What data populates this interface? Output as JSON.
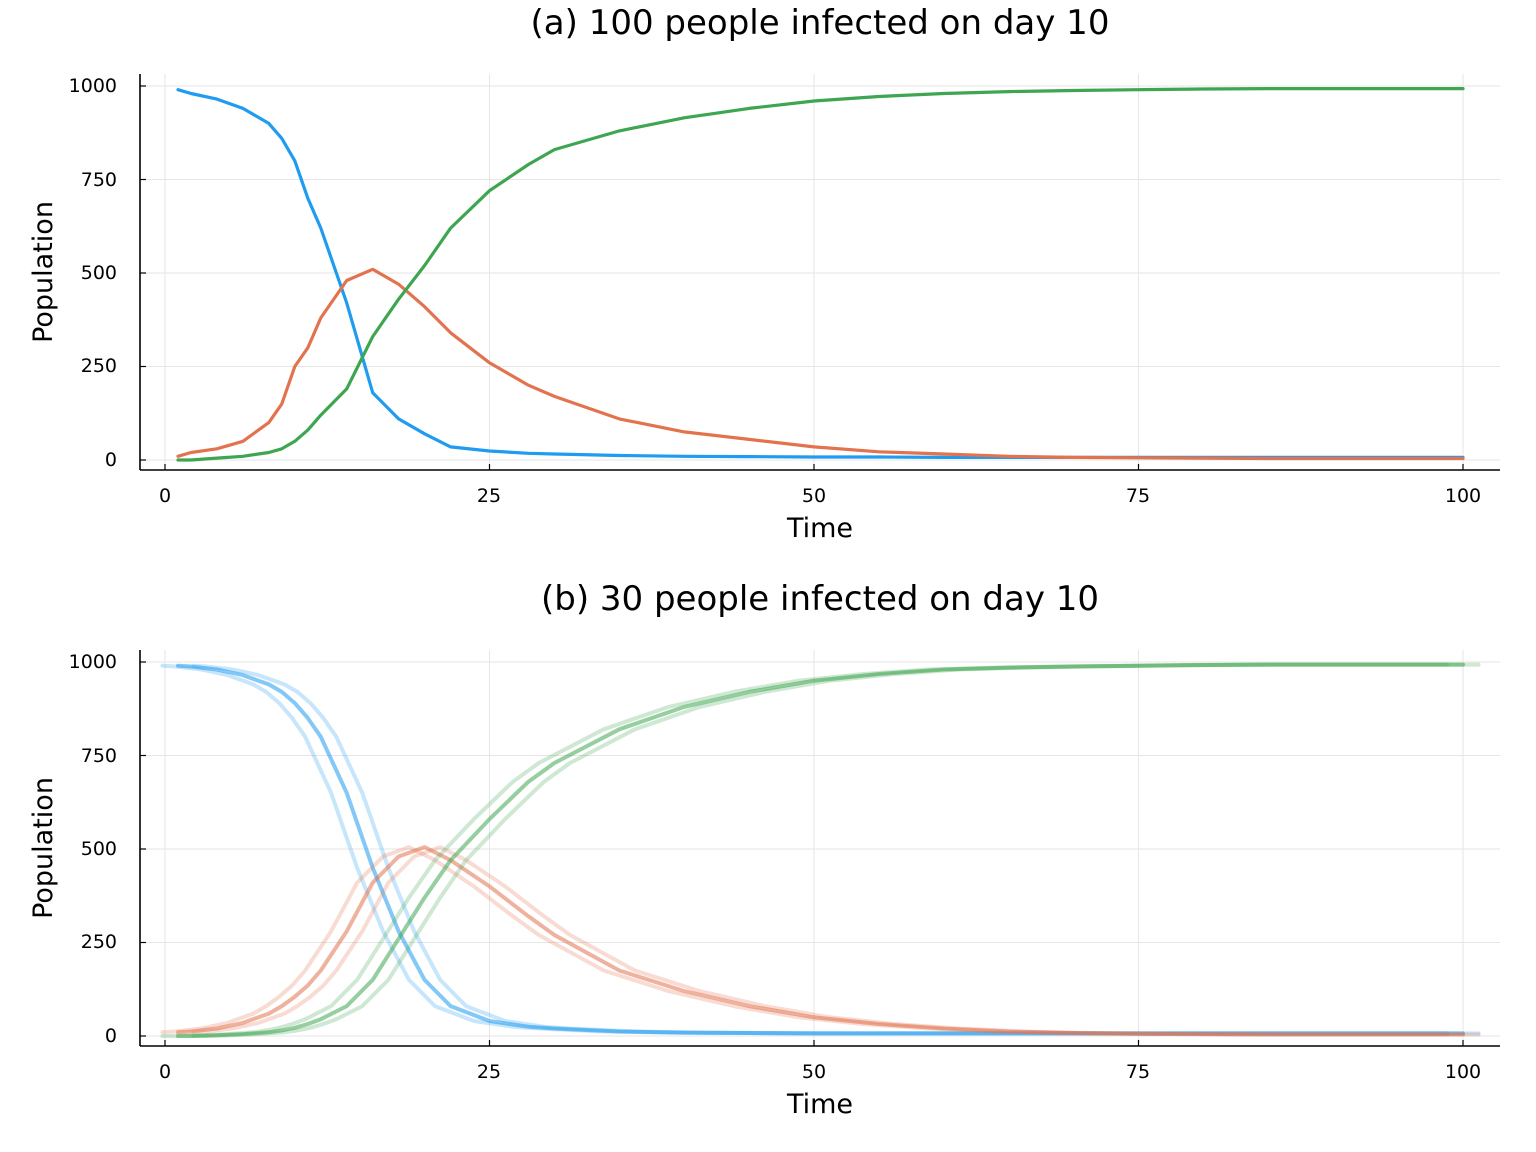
{
  "chart_data": [
    {
      "type": "line",
      "title": "(a) 100 people infected on day 10",
      "xlabel": "Time",
      "ylabel": "Population",
      "xlim": [
        0,
        100
      ],
      "ylim": [
        0,
        1000
      ],
      "xticks": [
        "0",
        "25",
        "50",
        "75",
        "100"
      ],
      "yticks": [
        "0",
        "250",
        "500",
        "750",
        "1000"
      ],
      "grid": true,
      "x": [
        1,
        2,
        4,
        6,
        8,
        9,
        10,
        11,
        12,
        14,
        16,
        18,
        20,
        22,
        25,
        28,
        30,
        35,
        40,
        45,
        50,
        55,
        60,
        65,
        70,
        75,
        80,
        85,
        90,
        95,
        100
      ],
      "series": [
        {
          "color": "#1f9bf0",
          "values": [
            990,
            980,
            965,
            940,
            900,
            860,
            800,
            700,
            620,
            420,
            180,
            110,
            70,
            35,
            24,
            18,
            16,
            12,
            10,
            9,
            8,
            8,
            7,
            7,
            7,
            7,
            7,
            7,
            7,
            7,
            7
          ]
        },
        {
          "color": "#e2734e",
          "values": [
            10,
            20,
            30,
            50,
            100,
            150,
            250,
            300,
            380,
            480,
            510,
            470,
            410,
            340,
            260,
            200,
            170,
            110,
            75,
            55,
            35,
            22,
            16,
            10,
            7,
            6,
            5,
            4,
            4,
            4,
            4
          ]
        },
        {
          "color": "#3ea550",
          "values": [
            0,
            0,
            5,
            10,
            20,
            30,
            50,
            80,
            120,
            190,
            330,
            430,
            520,
            620,
            720,
            790,
            830,
            880,
            915,
            940,
            960,
            972,
            980,
            985,
            988,
            990,
            992,
            993,
            993,
            993,
            993
          ]
        }
      ]
    },
    {
      "type": "line",
      "title": "(b) 30 people infected on day 10",
      "xlabel": "Time",
      "ylabel": "Population",
      "xlim": [
        0,
        100
      ],
      "ylim": [
        0,
        1000
      ],
      "xticks": [
        "0",
        "25",
        "50",
        "75",
        "100"
      ],
      "yticks": [
        "0",
        "250",
        "500",
        "750",
        "1000"
      ],
      "grid": true,
      "x": [
        1,
        2,
        4,
        6,
        8,
        9,
        10,
        11,
        12,
        14,
        16,
        18,
        20,
        22,
        25,
        28,
        30,
        35,
        40,
        45,
        50,
        55,
        60,
        65,
        70,
        75,
        80,
        85,
        90,
        95,
        100
      ],
      "series": [
        {
          "color": "#1f9bf0",
          "values": [
            990,
            988,
            980,
            965,
            940,
            920,
            890,
            850,
            800,
            650,
            450,
            280,
            150,
            80,
            40,
            25,
            20,
            12,
            9,
            8,
            7,
            7,
            7,
            7,
            7,
            7,
            7,
            7,
            7,
            7,
            7
          ]
        },
        {
          "color": "#e2734e",
          "values": [
            10,
            12,
            20,
            35,
            60,
            80,
            105,
            135,
            175,
            280,
            410,
            480,
            505,
            470,
            400,
            320,
            270,
            175,
            120,
            80,
            50,
            32,
            20,
            12,
            8,
            6,
            5,
            4,
            4,
            4,
            4
          ]
        },
        {
          "color": "#3ea550",
          "values": [
            0,
            0,
            2,
            5,
            10,
            15,
            22,
            32,
            45,
            80,
            150,
            260,
            370,
            470,
            580,
            680,
            730,
            820,
            880,
            920,
            950,
            968,
            980,
            985,
            988,
            990,
            992,
            993,
            993,
            993,
            993
          ]
        }
      ]
    }
  ]
}
